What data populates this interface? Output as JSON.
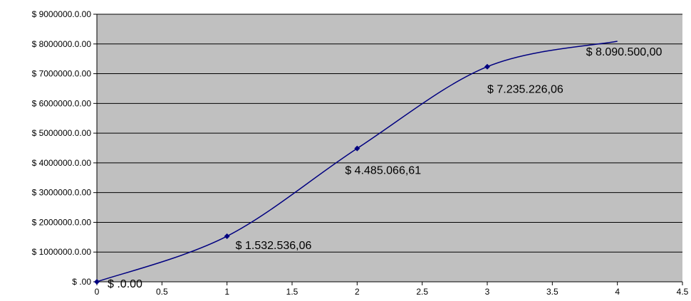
{
  "chart_data": {
    "type": "line",
    "title": "",
    "xlabel": "",
    "ylabel": "",
    "x": [
      0,
      1,
      2,
      3,
      4
    ],
    "series": [
      {
        "values": [
          0,
          1532536.06,
          4485066.61,
          7235226.06,
          8090500.0
        ],
        "data_labels": [
          "$ .0.00",
          "$ 1.532.536,06",
          "$ 4.485.066,61",
          "$ 7.235.226,06",
          "$ 8.090.500,00"
        ],
        "markers": [
          true,
          true,
          true,
          true,
          false
        ],
        "smooth": true
      }
    ],
    "xlim": [
      0,
      4.5
    ],
    "ylim": [
      0,
      9000000
    ],
    "x_ticks": [
      0,
      0.5,
      1,
      1.5,
      2,
      2.5,
      3,
      3.5,
      4,
      4.5
    ],
    "x_tick_labels": [
      "0",
      "0.5",
      "1",
      "1.5",
      "2",
      "2.5",
      "3",
      "3.5",
      "4",
      "4.5"
    ],
    "y_ticks": [
      0,
      1000000,
      2000000,
      3000000,
      4000000,
      5000000,
      6000000,
      7000000,
      8000000,
      9000000
    ],
    "y_tick_labels": [
      "$ .00",
      "$ 1000000.0.00",
      "$ 2000000.0.00",
      "$ 3000000.0.00",
      "$ 4000000.0.00",
      "$ 5000000.0.00",
      "$ 6000000.0.00",
      "$ 7000000.0.00",
      "$ 8000000.0.00",
      "$ 9000000.0.00"
    ],
    "grid": "horizontal",
    "legend": "none",
    "colors": {
      "plot_background": "#c0c0c0",
      "gridline": "#000000",
      "series": "#000080",
      "axis": "#000000"
    }
  }
}
